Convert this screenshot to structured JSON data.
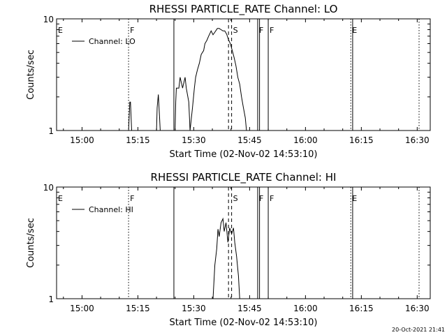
{
  "timestamp": "20-Oct-2021 21:41",
  "chart_data": [
    {
      "type": "line",
      "title": "RHESSI PARTICLE_RATE Channel: LO",
      "xlabel": "Start Time (02-Nov-02 14:53:10)",
      "ylabel": "Counts/sec",
      "yscale": "log",
      "ylim": [
        1,
        10
      ],
      "xlim": [
        "14:53:10",
        "16:33:30"
      ],
      "x_tick_labels": [
        "15:00",
        "15:15",
        "15:30",
        "15:45",
        "16:00",
        "16:15",
        "16:30"
      ],
      "y_tick_labels": [
        "1",
        "10"
      ],
      "legend": {
        "entries": [
          "Channel: LO"
        ],
        "placement": "top-left"
      },
      "series": [
        {
          "name": "Channel: LO",
          "x": [
            "15:12:30",
            "15:12:50",
            "15:13:00",
            "15:13:20",
            "15:20:00",
            "15:20:10",
            "15:20:30",
            "15:20:50",
            "15:21:00",
            "15:25:00",
            "15:25:10",
            "15:25:20",
            "15:26:00",
            "15:26:20",
            "15:27:00",
            "15:27:40",
            "15:28:00",
            "15:28:40",
            "15:29:00",
            "15:29:40",
            "15:30:10",
            "15:30:30",
            "15:31:00",
            "15:31:30",
            "15:32:00",
            "15:32:40",
            "15:33:00",
            "15:33:30",
            "15:34:00",
            "15:34:40",
            "15:35:10",
            "15:35:40",
            "15:36:20",
            "15:36:50",
            "15:37:20",
            "15:37:50",
            "15:38:20",
            "15:38:50",
            "15:39:20",
            "15:39:50",
            "15:40:20",
            "15:40:50",
            "15:41:20",
            "15:41:50",
            "15:42:20",
            "15:42:50",
            "15:43:20",
            "15:43:50",
            "15:44:10"
          ],
          "y": [
            1.0,
            1.8,
            1.8,
            1.0,
            1.0,
            1.6,
            2.1,
            1.3,
            1.0,
            1.0,
            1.8,
            2.4,
            2.4,
            3.0,
            2.4,
            3.0,
            2.4,
            1.8,
            1.0,
            1.6,
            2.4,
            3.0,
            3.5,
            4.0,
            4.8,
            5.2,
            6.0,
            6.4,
            7.0,
            7.8,
            7.2,
            7.6,
            8.2,
            8.2,
            8.0,
            7.8,
            7.8,
            7.3,
            6.5,
            6.0,
            5.2,
            4.5,
            3.8,
            3.0,
            2.6,
            2.0,
            1.6,
            1.3,
            1.0
          ]
        }
      ],
      "vertical_markers": [
        {
          "time": "14:53:10",
          "label": "E",
          "style": "dotted"
        },
        {
          "time": "15:12:30",
          "label": "F",
          "style": "dotted"
        },
        {
          "time": "15:24:40",
          "label": "",
          "style": "solid"
        },
        {
          "time": "15:39:20",
          "label": "",
          "style": "dashed"
        },
        {
          "time": "15:40:10",
          "label": "S",
          "style": "dashed"
        },
        {
          "time": "15:47:10",
          "label": "F",
          "style": "solid"
        },
        {
          "time": "15:47:40",
          "label": "",
          "style": "solid"
        },
        {
          "time": "15:50:00",
          "label": "F",
          "style": "solid"
        },
        {
          "time": "16:12:10",
          "label": "E",
          "style": "dotted"
        },
        {
          "time": "16:12:40",
          "label": "",
          "style": "solid"
        },
        {
          "time": "16:30:30",
          "label": "",
          "style": "dotted"
        }
      ]
    },
    {
      "type": "line",
      "title": "RHESSI PARTICLE_RATE Channel: HI",
      "xlabel": "Start Time (02-Nov-02 14:53:10)",
      "ylabel": "Counts/sec",
      "yscale": "log",
      "ylim": [
        1,
        10
      ],
      "xlim": [
        "14:53:10",
        "16:33:30"
      ],
      "x_tick_labels": [
        "15:00",
        "15:15",
        "15:30",
        "15:45",
        "16:00",
        "16:15",
        "16:30"
      ],
      "y_tick_labels": [
        "1",
        "10"
      ],
      "legend": {
        "entries": [
          "Channel: HI"
        ],
        "placement": "top-left"
      },
      "series": [
        {
          "name": "Channel: HI",
          "x": [
            "15:35:10",
            "15:35:40",
            "15:36:10",
            "15:36:30",
            "15:36:50",
            "15:37:20",
            "15:37:50",
            "15:38:10",
            "15:38:40",
            "15:39:10",
            "15:39:40",
            "15:40:10",
            "15:40:40",
            "15:41:00",
            "15:41:30",
            "15:42:00",
            "15:42:20"
          ],
          "y": [
            1.0,
            2.0,
            2.8,
            4.2,
            3.6,
            4.8,
            5.2,
            4.0,
            4.8,
            3.2,
            4.3,
            3.8,
            4.3,
            3.2,
            2.4,
            1.6,
            1.0
          ]
        }
      ],
      "vertical_markers": [
        {
          "time": "14:53:10",
          "label": "E",
          "style": "dotted"
        },
        {
          "time": "15:12:30",
          "label": "F",
          "style": "dotted"
        },
        {
          "time": "15:24:40",
          "label": "",
          "style": "solid"
        },
        {
          "time": "15:39:20",
          "label": "",
          "style": "dashed"
        },
        {
          "time": "15:40:10",
          "label": "S",
          "style": "dashed"
        },
        {
          "time": "15:47:10",
          "label": "F",
          "style": "solid"
        },
        {
          "time": "15:47:40",
          "label": "",
          "style": "solid"
        },
        {
          "time": "15:50:00",
          "label": "F",
          "style": "solid"
        },
        {
          "time": "16:12:10",
          "label": "E",
          "style": "dotted"
        },
        {
          "time": "16:12:40",
          "label": "",
          "style": "solid"
        },
        {
          "time": "16:30:30",
          "label": "",
          "style": "dotted"
        }
      ]
    }
  ]
}
